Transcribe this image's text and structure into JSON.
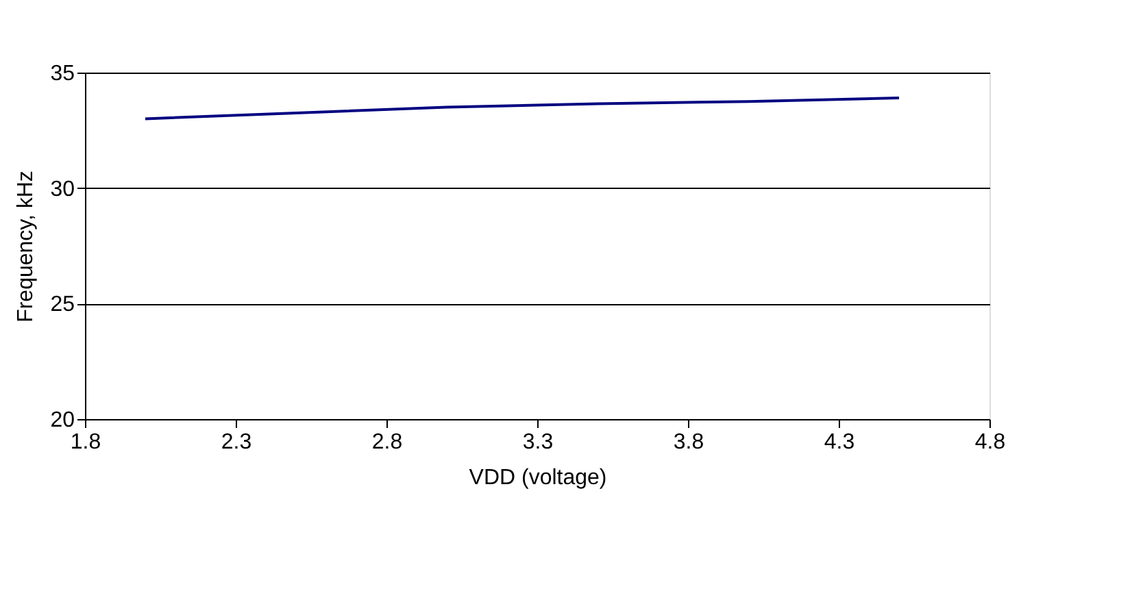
{
  "chart_data": {
    "type": "line",
    "xlabel": "VDD (voltage)",
    "ylabel": "Frequency, kHz",
    "x": [
      2.0,
      2.5,
      3.0,
      3.5,
      4.0,
      4.5
    ],
    "series": [
      {
        "color": "#000080",
        "values": [
          33.0,
          33.25,
          33.5,
          33.65,
          33.75,
          33.9
        ]
      }
    ],
    "xlim": [
      1.8,
      4.8
    ],
    "xticks": [
      1.8,
      2.3,
      2.8,
      3.3,
      3.8,
      4.3,
      4.8
    ],
    "ylim": [
      20,
      35
    ],
    "yticks": [
      20,
      25,
      30,
      35
    ],
    "grid": "y",
    "legend": false,
    "marker": "none",
    "line_style": "solid"
  }
}
